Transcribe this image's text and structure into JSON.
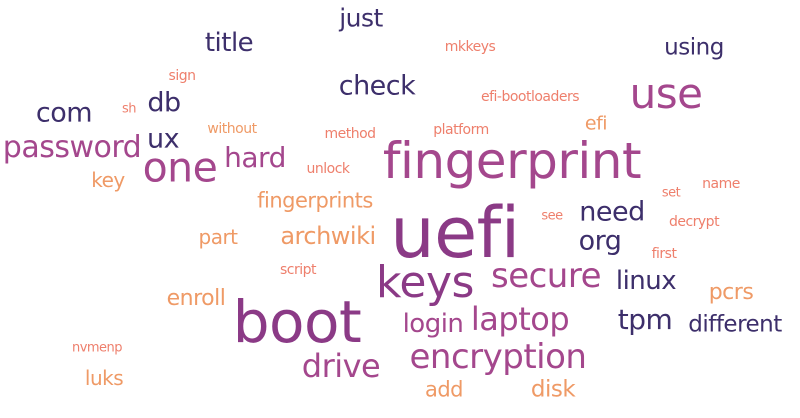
{
  "colors": {
    "navy": "#3d2f6b",
    "purple": "#8b3a86",
    "magenta": "#a4478d",
    "orange": "#ef9a66",
    "salmon": "#ee7f6c"
  },
  "words": [
    {
      "text": "just",
      "color": "navy"
    },
    {
      "text": "title",
      "color": "navy"
    },
    {
      "text": "mkkeys",
      "color": "salmon"
    },
    {
      "text": "using",
      "color": "navy"
    },
    {
      "text": "sign",
      "color": "salmon"
    },
    {
      "text": "check",
      "color": "navy"
    },
    {
      "text": "use",
      "color": "magenta"
    },
    {
      "text": "efi-bootloaders",
      "color": "salmon"
    },
    {
      "text": "db",
      "color": "navy"
    },
    {
      "text": "com",
      "color": "navy"
    },
    {
      "text": "sh",
      "color": "salmon"
    },
    {
      "text": "without",
      "color": "orange"
    },
    {
      "text": "method",
      "color": "salmon"
    },
    {
      "text": "platform",
      "color": "salmon"
    },
    {
      "text": "efi",
      "color": "orange"
    },
    {
      "text": "ux",
      "color": "navy"
    },
    {
      "text": "password",
      "color": "magenta"
    },
    {
      "text": "one",
      "color": "magenta"
    },
    {
      "text": "hard",
      "color": "magenta"
    },
    {
      "text": "fingerprint",
      "color": "magenta"
    },
    {
      "text": "unlock",
      "color": "salmon"
    },
    {
      "text": "key",
      "color": "orange"
    },
    {
      "text": "name",
      "color": "salmon"
    },
    {
      "text": "set",
      "color": "salmon"
    },
    {
      "text": "fingerprints",
      "color": "orange"
    },
    {
      "text": "need",
      "color": "navy"
    },
    {
      "text": "see",
      "color": "salmon"
    },
    {
      "text": "decrypt",
      "color": "salmon"
    },
    {
      "text": "uefi",
      "color": "purple"
    },
    {
      "text": "part",
      "color": "orange"
    },
    {
      "text": "archwiki",
      "color": "orange"
    },
    {
      "text": "org",
      "color": "navy"
    },
    {
      "text": "first",
      "color": "salmon"
    },
    {
      "text": "script",
      "color": "salmon"
    },
    {
      "text": "keys",
      "color": "purple"
    },
    {
      "text": "secure",
      "color": "magenta"
    },
    {
      "text": "linux",
      "color": "navy"
    },
    {
      "text": "pcrs",
      "color": "orange"
    },
    {
      "text": "enroll",
      "color": "orange"
    },
    {
      "text": "boot",
      "color": "purple"
    },
    {
      "text": "laptop",
      "color": "magenta"
    },
    {
      "text": "login",
      "color": "magenta"
    },
    {
      "text": "tpm",
      "color": "navy"
    },
    {
      "text": "different",
      "color": "navy"
    },
    {
      "text": "nvmenp",
      "color": "salmon"
    },
    {
      "text": "encryption",
      "color": "magenta"
    },
    {
      "text": "drive",
      "color": "magenta"
    },
    {
      "text": "luks",
      "color": "orange"
    },
    {
      "text": "add",
      "color": "orange"
    },
    {
      "text": "disk",
      "color": "orange"
    }
  ]
}
